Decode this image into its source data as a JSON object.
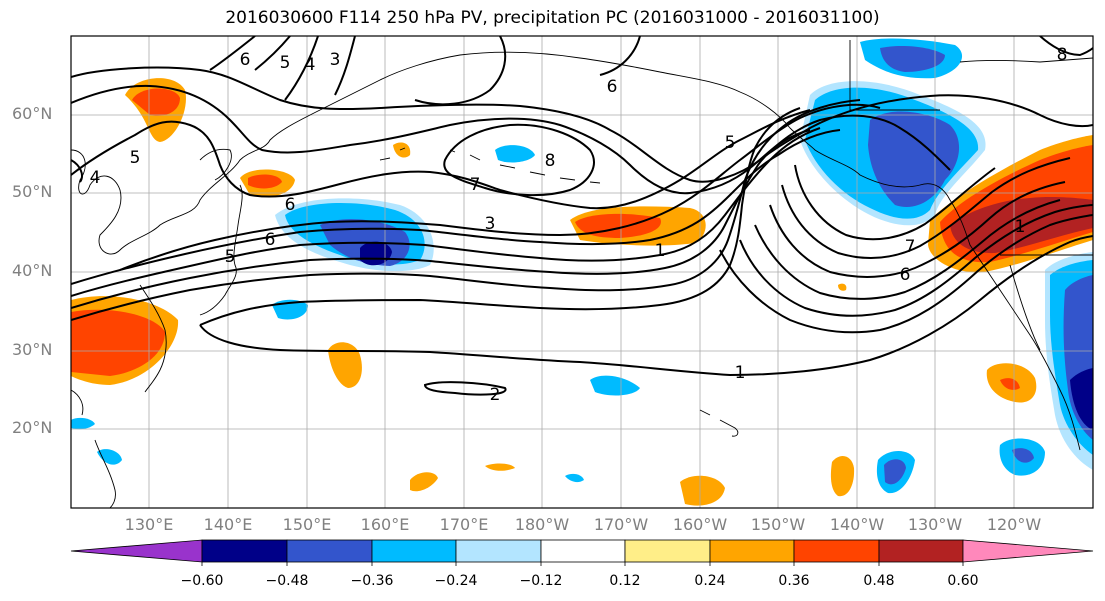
{
  "title": "2016030600 F114 250 hPa PV, precipitation PC (2016031000 - 2016031100)",
  "lat_labels": [
    "60°N",
    "50°N",
    "40°N",
    "30°N",
    "20°N"
  ],
  "lon_labels": [
    "130°E",
    "140°E",
    "150°E",
    "160°E",
    "170°E",
    "180°W",
    "170°W",
    "160°W",
    "150°W",
    "140°W",
    "130°W",
    "120°W"
  ],
  "contour_labels": [
    "6",
    "5",
    "4",
    "3",
    "6",
    "5",
    "4",
    "5",
    "6",
    "6",
    "8",
    "7",
    "3",
    "1",
    "5",
    "1",
    "7",
    "6",
    "2",
    "1",
    "8"
  ],
  "colorbar": {
    "ticks": [
      "−0.60",
      "−0.48",
      "−0.36",
      "−0.24",
      "−0.12",
      "0.12",
      "0.24",
      "0.36",
      "0.48",
      "0.60"
    ],
    "colors": [
      "#9933cc",
      "#000088",
      "#3355cc",
      "#00bbff",
      "#b3e5ff",
      "#ffffff",
      "#ffee88",
      "#ffa500",
      "#ff4400",
      "#b22222",
      "#ff88bb"
    ]
  },
  "colors": {
    "pc_neg1": "#b3e5ff",
    "pc_neg2": "#00bbff",
    "pc_neg3": "#3355cc",
    "pc_neg4": "#000088",
    "pc_pos1": "#ffee88",
    "pc_pos2": "#ffa500",
    "pc_pos3": "#ff4400",
    "pc_pos4": "#b22222"
  }
}
